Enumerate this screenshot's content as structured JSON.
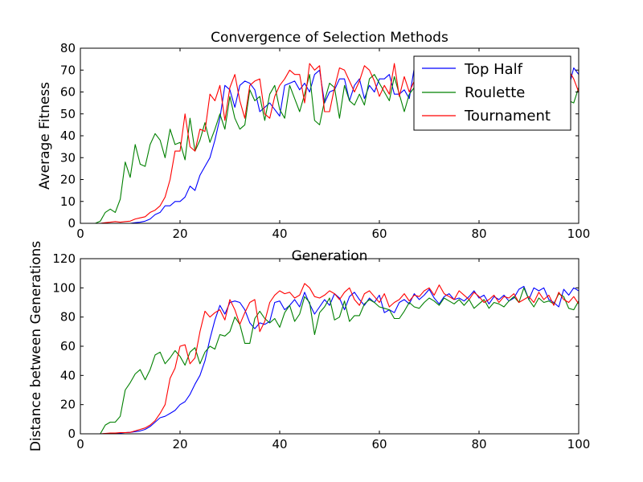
{
  "chart_data": [
    {
      "type": "line",
      "title": "Convergence of Selection Methods",
      "xlabel": "Generation",
      "ylabel": "Average Fitness",
      "xlim": [
        0,
        100
      ],
      "ylim": [
        0,
        80
      ],
      "xticks": [
        0,
        20,
        40,
        60,
        80,
        100
      ],
      "yticks": [
        0,
        10,
        20,
        30,
        40,
        50,
        60,
        70,
        80
      ],
      "grid": false,
      "legend": "top-right",
      "x": [
        0,
        1,
        2,
        3,
        4,
        5,
        6,
        7,
        8,
        9,
        10,
        11,
        12,
        13,
        14,
        15,
        16,
        17,
        18,
        19,
        20,
        21,
        22,
        23,
        24,
        25,
        26,
        27,
        28,
        29,
        30,
        31,
        32,
        33,
        34,
        35,
        36,
        37,
        38,
        39,
        40,
        41,
        42,
        43,
        44,
        45,
        46,
        47,
        48,
        49,
        50,
        51,
        52,
        53,
        54,
        55,
        56,
        57,
        58,
        59,
        60,
        61,
        62,
        63,
        64,
        65,
        66,
        67,
        68,
        69,
        70,
        71,
        72,
        73,
        74,
        75,
        76,
        77,
        78,
        79,
        80,
        81,
        82,
        83,
        84,
        85,
        86,
        87,
        88,
        89,
        90,
        91,
        92,
        93,
        94,
        95,
        96,
        97,
        98,
        99,
        100
      ],
      "series": [
        {
          "name": "Top Half",
          "color": "#0000ff",
          "values": [
            0,
            0,
            0,
            0,
            0,
            0,
            0,
            0,
            0,
            0,
            0,
            0.3,
            0.5,
            1,
            2,
            4,
            5,
            8,
            8,
            10,
            10,
            12,
            17,
            15,
            22,
            26,
            30,
            38,
            48,
            63,
            61,
            53,
            63,
            65,
            64,
            61,
            51,
            53,
            55,
            52,
            49,
            63,
            64,
            65,
            61,
            64,
            60,
            68,
            70,
            55,
            60,
            61,
            66,
            66,
            56,
            63,
            66,
            57,
            63,
            60,
            66,
            66,
            68,
            59,
            59,
            61,
            57,
            71,
            66,
            67,
            60,
            65,
            64,
            61,
            66,
            60,
            62,
            64,
            60,
            64,
            63,
            61,
            66,
            61,
            64,
            63,
            62,
            60,
            66,
            60,
            64,
            67,
            62,
            65,
            61,
            66,
            64,
            66,
            62,
            71,
            68
          ]
        },
        {
          "name": "Roulette",
          "color": "#008000",
          "values": [
            0,
            0,
            0,
            0,
            1,
            5,
            6.5,
            5,
            11,
            28,
            21,
            36,
            27,
            26,
            36,
            41,
            38,
            30,
            43,
            36,
            37,
            29,
            48,
            33,
            38,
            46,
            37,
            43,
            50,
            43,
            58,
            48,
            43,
            45,
            61,
            56,
            58,
            47,
            59,
            63,
            52,
            48,
            63,
            57,
            51,
            59,
            68,
            47,
            45,
            56,
            64,
            62,
            48,
            63,
            56,
            54,
            59,
            54,
            66,
            68,
            64,
            60,
            56,
            67,
            59,
            51,
            59,
            62,
            56,
            63,
            60,
            55,
            61,
            58,
            59,
            64,
            56,
            61,
            57,
            63,
            58,
            62,
            56,
            61,
            59,
            55,
            63,
            60,
            55,
            63,
            58,
            61,
            56,
            64,
            57,
            62,
            58,
            63,
            56,
            55,
            62
          ]
        },
        {
          "name": "Tournament",
          "color": "#ff0000",
          "values": [
            0,
            0,
            0,
            0,
            0,
            0.3,
            0.5,
            0.8,
            0.5,
            0.8,
            1,
            2,
            2.5,
            3,
            5,
            6,
            8,
            12,
            20,
            33,
            33,
            50,
            35,
            33,
            43,
            42,
            59,
            56,
            63,
            47,
            62,
            68,
            56,
            48,
            63,
            65,
            66,
            50,
            48,
            58,
            63,
            66,
            70,
            68,
            68,
            55,
            73,
            70,
            72,
            51,
            51,
            62,
            71,
            70,
            65,
            60,
            65,
            72,
            70,
            65,
            58,
            63,
            59,
            73,
            58,
            67,
            60,
            65,
            66,
            72,
            62,
            59,
            65,
            63,
            70,
            64,
            61,
            67,
            62,
            66,
            60,
            64,
            68,
            63,
            66,
            61,
            65,
            70,
            63,
            66,
            62,
            67,
            63,
            71,
            65,
            61,
            68,
            64,
            70,
            66,
            60
          ]
        }
      ]
    },
    {
      "type": "line",
      "title": "",
      "xlabel": "",
      "ylabel": "Distance between Generations",
      "xlim": [
        0,
        100
      ],
      "ylim": [
        0,
        120
      ],
      "xticks": [
        0,
        20,
        40,
        60,
        80,
        100
      ],
      "yticks": [
        0,
        20,
        40,
        60,
        80,
        100,
        120
      ],
      "grid": false,
      "legend": "",
      "x": [
        0,
        1,
        2,
        3,
        4,
        5,
        6,
        7,
        8,
        9,
        10,
        11,
        12,
        13,
        14,
        15,
        16,
        17,
        18,
        19,
        20,
        21,
        22,
        23,
        24,
        25,
        26,
        27,
        28,
        29,
        30,
        31,
        32,
        33,
        34,
        35,
        36,
        37,
        38,
        39,
        40,
        41,
        42,
        43,
        44,
        45,
        46,
        47,
        48,
        49,
        50,
        51,
        52,
        53,
        54,
        55,
        56,
        57,
        58,
        59,
        60,
        61,
        62,
        63,
        64,
        65,
        66,
        67,
        68,
        69,
        70,
        71,
        72,
        73,
        74,
        75,
        76,
        77,
        78,
        79,
        80,
        81,
        82,
        83,
        84,
        85,
        86,
        87,
        88,
        89,
        90,
        91,
        92,
        93,
        94,
        95,
        96,
        97,
        98,
        99,
        100
      ],
      "series": [
        {
          "name": "Top Half",
          "color": "#0000ff",
          "values": [
            0,
            0,
            0,
            0,
            0,
            0,
            0,
            0.3,
            0.5,
            0.8,
            1,
            1.5,
            2,
            3,
            5,
            8,
            11,
            12,
            14,
            16,
            20,
            22,
            27,
            34,
            40,
            50,
            65,
            78,
            88,
            82,
            90,
            91,
            90,
            85,
            76,
            72,
            76,
            75,
            77,
            90,
            91,
            85,
            88,
            92,
            87,
            97,
            89,
            82,
            87,
            92,
            88,
            96,
            93,
            85,
            94,
            97,
            92,
            88,
            93,
            90,
            95,
            83,
            85,
            83,
            90,
            92,
            89,
            96,
            92,
            95,
            99,
            93,
            89,
            94,
            96,
            92,
            93,
            91,
            94,
            98,
            93,
            95,
            89,
            94,
            92,
            95,
            91,
            93,
            99,
            101,
            92,
            100,
            98,
            100,
            92,
            90,
            87,
            99,
            95,
            100,
            98
          ]
        },
        {
          "name": "Roulette",
          "color": "#008000",
          "values": [
            0,
            0,
            0,
            0,
            0,
            6,
            8,
            8,
            12,
            30,
            35,
            41,
            44,
            37,
            44,
            54,
            56,
            48,
            52,
            57,
            53,
            47,
            56,
            59,
            48,
            56,
            60,
            58,
            68,
            67,
            70,
            80,
            75,
            62,
            62,
            79,
            84,
            79,
            76,
            79,
            73,
            83,
            88,
            77,
            82,
            94,
            90,
            68,
            83,
            87,
            93,
            78,
            80,
            91,
            77,
            81,
            81,
            89,
            92,
            90,
            87,
            86,
            85,
            79,
            79,
            84,
            90,
            87,
            86,
            90,
            93,
            91,
            88,
            93,
            91,
            89,
            92,
            88,
            92,
            86,
            89,
            92,
            86,
            90,
            89,
            87,
            91,
            94,
            90,
            100,
            92,
            87,
            93,
            90,
            91,
            89,
            96,
            94,
            86,
            85,
            91
          ]
        },
        {
          "name": "Tournament",
          "color": "#ff0000",
          "values": [
            0,
            0,
            0,
            0,
            0,
            0.3,
            0.5,
            0.5,
            0.8,
            0.8,
            1,
            2,
            3,
            4,
            6,
            9,
            14,
            20,
            38,
            45,
            60,
            61,
            48,
            52,
            70,
            84,
            80,
            83,
            85,
            78,
            92,
            85,
            75,
            83,
            90,
            92,
            70,
            77,
            90,
            95,
            98,
            96,
            97,
            93,
            95,
            103,
            100,
            94,
            93,
            95,
            98,
            96,
            92,
            97,
            100,
            92,
            88,
            96,
            98,
            94,
            90,
            96,
            87,
            90,
            92,
            96,
            91,
            95,
            94,
            98,
            100,
            95,
            102,
            96,
            94,
            92,
            98,
            95,
            92,
            97,
            94,
            90,
            92,
            95,
            90,
            94,
            93,
            96,
            90,
            92,
            94,
            90,
            97,
            92,
            95,
            88,
            97,
            92,
            90,
            94,
            89
          ]
        }
      ]
    }
  ]
}
